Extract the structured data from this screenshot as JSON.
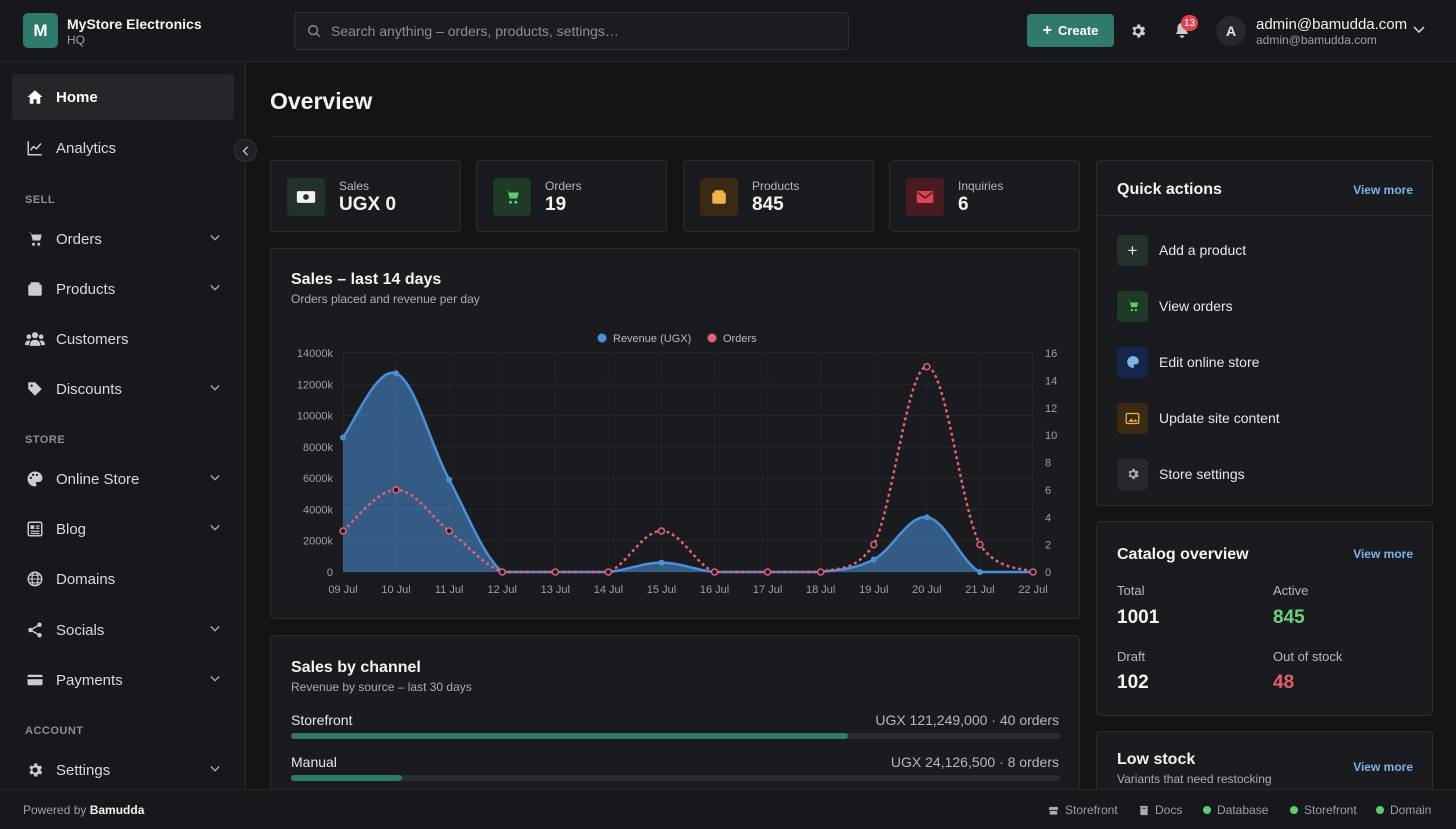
{
  "header": {
    "logo_letter": "M",
    "store_name": "MyStore Electronics",
    "store_sub": "HQ",
    "search_placeholder": "Search anything – orders, products, settings…",
    "create_label": "Create",
    "notif_count": "13",
    "user_initial": "A",
    "user_name": "admin@bamudda.com",
    "user_email": "admin@bamudda.com"
  },
  "sidebar": {
    "home": "Home",
    "analytics": "Analytics",
    "sec_sell": "SELL",
    "orders": "Orders",
    "products": "Products",
    "customers": "Customers",
    "discounts": "Discounts",
    "sec_store": "STORE",
    "online_store": "Online Store",
    "blog": "Blog",
    "domains": "Domains",
    "socials": "Socials",
    "payments": "Payments",
    "sec_account": "ACCOUNT",
    "settings": "Settings"
  },
  "main": {
    "title": "Overview",
    "stats": [
      {
        "label": "Sales",
        "value": "UGX 0"
      },
      {
        "label": "Orders",
        "value": "19"
      },
      {
        "label": "Products",
        "value": "845"
      },
      {
        "label": "Inquiries",
        "value": "6"
      }
    ]
  },
  "sales_chart": {
    "title": "Sales – last 14 days",
    "subtitle": "Orders placed and revenue per day"
  },
  "chart_data": {
    "type": "line",
    "title": "Sales – last 14 days",
    "categories": [
      "09 Jul",
      "10 Jul",
      "11 Jul",
      "12 Jul",
      "13 Jul",
      "14 Jul",
      "15 Jul",
      "16 Jul",
      "17 Jul",
      "18 Jul",
      "19 Jul",
      "20 Jul",
      "21 Jul",
      "22 Jul"
    ],
    "series": [
      {
        "name": "Revenue (UGX)",
        "axis": "left",
        "style": "area",
        "color": "#4a90d9",
        "values": [
          8600000,
          12700000,
          5900000,
          0,
          0,
          0,
          600000,
          0,
          0,
          0,
          800000,
          3500000,
          0,
          0
        ]
      },
      {
        "name": "Orders",
        "axis": "right",
        "style": "dashed",
        "color": "#e0607a",
        "values": [
          3,
          6,
          3,
          0,
          0,
          0,
          3,
          0,
          0,
          0,
          2,
          15,
          2,
          0
        ]
      }
    ],
    "y_left": {
      "min": 0,
      "max": 14000000,
      "ticks": [
        "0",
        "2000k",
        "4000k",
        "6000k",
        "8000k",
        "10000k",
        "12000k",
        "14000k"
      ]
    },
    "y_right": {
      "min": 0,
      "max": 16,
      "ticks": [
        "0",
        "2",
        "4",
        "6",
        "8",
        "10",
        "12",
        "14",
        "16"
      ]
    },
    "legend": "top-center",
    "grid": true
  },
  "channels": {
    "title": "Sales by channel",
    "subtitle": "Revenue by source – last 30 days",
    "items": [
      {
        "name": "Storefront",
        "value": "UGX 121,249,000 · 40 orders",
        "fraction": 0.724
      },
      {
        "name": "Manual",
        "value": "UGX 24,126,500 · 8 orders",
        "fraction": 0.144
      }
    ]
  },
  "quick_actions": {
    "title": "Quick actions",
    "view_more": "View more",
    "items": [
      "Add a product",
      "View orders",
      "Edit online store",
      "Update site content",
      "Store settings"
    ]
  },
  "catalog": {
    "title": "Catalog overview",
    "view_more": "View more",
    "total_label": "Total",
    "total_value": "1001",
    "active_label": "Active",
    "active_value": "845",
    "draft_label": "Draft",
    "draft_value": "102",
    "oos_label": "Out of stock",
    "oos_value": "48"
  },
  "low_stock": {
    "title": "Low stock",
    "subtitle": "Variants that need restocking",
    "view_more": "View more"
  },
  "footer": {
    "powered_prefix": "Powered by",
    "powered_brand": "Bamudda",
    "links": [
      "Storefront",
      "Docs"
    ],
    "status": [
      "Database",
      "Storefront",
      "Domain"
    ]
  },
  "colors": {
    "accent": "#2f7a69",
    "link": "#7fb3e8",
    "positive": "#6fd17d",
    "negative": "#e35d6a"
  }
}
